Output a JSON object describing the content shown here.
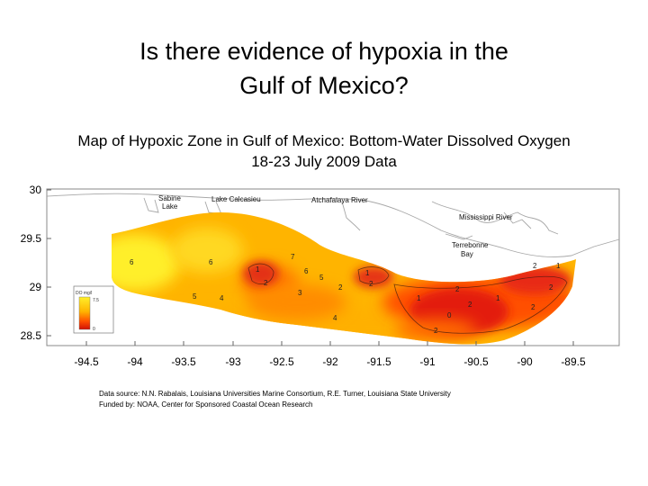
{
  "slide": {
    "title_line1": "Is there evidence of hypoxia in the",
    "title_line2": "Gulf of Mexico?"
  },
  "map": {
    "title_line1": "Map of Hypoxic Zone in Gulf of Mexico: Bottom-Water Dissolved Oxygen",
    "title_line2": "18-23 July 2009 Data",
    "place_labels": {
      "sabine": "Sabine",
      "sabine_lake": "Lake",
      "calcasieu": "Lake Calcasieu",
      "atchafalaya": "Atchafalaya River",
      "mississippi": "Mississippi River",
      "terrebonne": "Terrebonne",
      "terrebonne_bay": "Bay"
    },
    "x_ticks": [
      "-94.5",
      "-94",
      "-93.5",
      "-93",
      "-92.5",
      "-92",
      "-91.5",
      "-91",
      "-90.5",
      "-90",
      "-89.5"
    ],
    "y_ticks": [
      "30",
      "29.5",
      "29",
      "28.5"
    ],
    "contour_labels": [
      "6",
      "6",
      "7",
      "1",
      "2",
      "6",
      "5",
      "1",
      "2",
      "5",
      "4",
      "3",
      "2",
      "4",
      "2",
      "1",
      "2",
      "0",
      "2",
      "2",
      "1",
      "2",
      "1",
      "2"
    ],
    "legend": {
      "unit": "DO mg/l",
      "top": "7.5",
      "bottom": "0"
    },
    "colors": {
      "high_oxygen": "#ffef2a",
      "mid": "#ffb400",
      "low": "#ff5000",
      "hypoxic": "#e31e10"
    }
  },
  "source": {
    "line1": "Data source: N.N. Rabalais, Louisiana Universities Marine Consortium, R.E. Turner, Louisiana State University",
    "line2": "Funded by: NOAA, Center for Sponsored Coastal Ocean Research"
  }
}
